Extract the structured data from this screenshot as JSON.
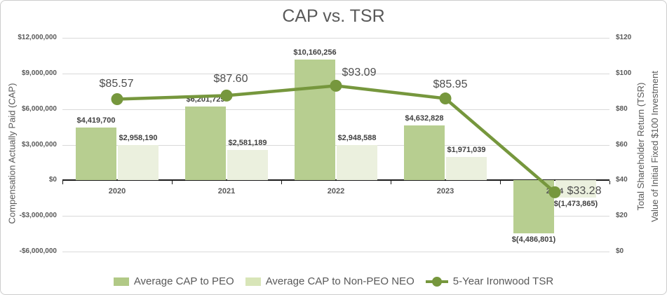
{
  "title": "CAP vs. TSR",
  "left_axis": {
    "title": "Compensation Actually Paid (CAP)",
    "ticks": [
      "$12,000,000",
      "$9,000,000",
      "$6,000,000",
      "$3,000,000",
      "$0",
      "-$3,000,000",
      "-$6,000,000"
    ]
  },
  "right_axis": {
    "title_line1": "Total Shareholder Return (TSR)",
    "title_line2": "Value of Initial Fixed $100 Investment",
    "ticks": [
      "$120",
      "$100",
      "$80",
      "$60",
      "$40",
      "$20",
      "$0"
    ]
  },
  "legend": {
    "items": [
      {
        "label": "Average CAP to PEO",
        "color": "#b1c986",
        "marker": "square"
      },
      {
        "label": "Average CAP to Non-PEO NEO",
        "color": "#d8e5b8",
        "marker": "square"
      },
      {
        "label": "5-Year Ironwood TSR",
        "color": "#76973d",
        "marker": "line-circle"
      }
    ]
  },
  "colors": {
    "peo_bar": "#b7ce90",
    "non_peo_bar": "#ebf0de",
    "tsr_line": "#76973d",
    "gridline": "#d9d9d9",
    "axis": "#1a1a1a",
    "text_gray": "#595959",
    "label_dark": "#3f3f3f"
  },
  "chart_data": {
    "type": "bar+line combo",
    "title": "CAP vs. TSR",
    "categories": [
      "2020",
      "2021",
      "2022",
      "2023",
      "2024"
    ],
    "left_axis_range": [
      -6000000,
      12000000
    ],
    "right_axis_range": [
      0,
      120
    ],
    "grid": true,
    "legend_position": "bottom",
    "series": [
      {
        "name": "Average CAP to PEO",
        "type": "bar",
        "axis": "left",
        "color": "#b7ce90",
        "values": [
          4419700,
          6201729,
          10160256,
          4632828,
          -4486801
        ],
        "labels": [
          "$4,419,700",
          "$6,201,729",
          "$10,160,256",
          "$4,632,828",
          "$(4,486,801)"
        ]
      },
      {
        "name": "Average CAP to Non-PEO NEO",
        "type": "bar",
        "axis": "left",
        "color": "#ebf0de",
        "values": [
          2958190,
          2581189,
          2948588,
          1971039,
          -1473865
        ],
        "labels": [
          "$2,958,190",
          "$2,581,189",
          "$2,948,588",
          "$1,971,039",
          "$(1,473,865)"
        ]
      },
      {
        "name": "5-Year Ironwood TSR",
        "type": "line",
        "axis": "right",
        "color": "#76973d",
        "values": [
          85.57,
          87.6,
          93.09,
          85.95,
          33.28
        ],
        "labels": [
          "$85.57",
          "$87.60",
          "$93.09",
          "$85.95",
          "$33.28"
        ]
      }
    ]
  }
}
